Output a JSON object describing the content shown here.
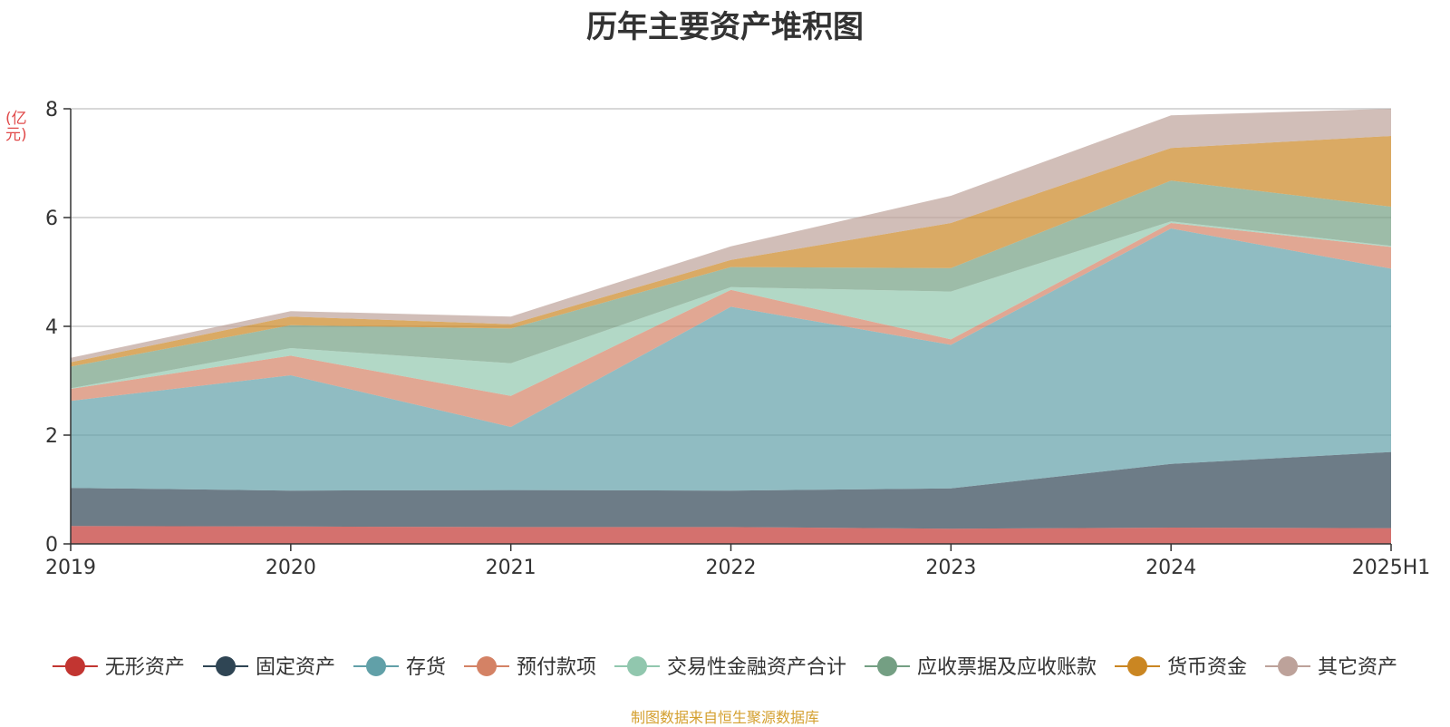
{
  "chart_data": {
    "type": "area",
    "stacked": true,
    "title": "历年主要资产堆积图",
    "ylabel": "(亿元)",
    "xlabel": "",
    "x": [
      "2019",
      "2020",
      "2021",
      "2022",
      "2023",
      "2024",
      "2025H1"
    ],
    "ylim": [
      0,
      8
    ],
    "yticks": [
      0,
      2,
      4,
      6,
      8
    ],
    "grid": true,
    "legend_position": "bottom",
    "series": [
      {
        "name": "无形资产",
        "color": "#c23531",
        "values": [
          0.33,
          0.32,
          0.31,
          0.31,
          0.28,
          0.3,
          0.29
        ]
      },
      {
        "name": "固定资产",
        "color": "#2f4554",
        "values": [
          0.7,
          0.66,
          0.68,
          0.67,
          0.74,
          1.17,
          1.4
        ]
      },
      {
        "name": "存货",
        "color": "#61a0a8",
        "values": [
          1.6,
          2.12,
          1.16,
          3.38,
          2.64,
          4.33,
          3.37
        ]
      },
      {
        "name": "预付款项",
        "color": "#d48265",
        "values": [
          0.22,
          0.36,
          0.57,
          0.31,
          0.1,
          0.1,
          0.4
        ]
      },
      {
        "name": "交易性金融资产合计",
        "color": "#91c7ae",
        "values": [
          0.01,
          0.14,
          0.6,
          0.05,
          0.88,
          0.03,
          0.02
        ]
      },
      {
        "name": "应收票据及应收账款",
        "color": "#749f83",
        "values": [
          0.4,
          0.42,
          0.64,
          0.37,
          0.43,
          0.75,
          0.72
        ]
      },
      {
        "name": "货币资金",
        "color": "#ca8622",
        "values": [
          0.08,
          0.16,
          0.08,
          0.13,
          0.83,
          0.6,
          1.3
        ]
      },
      {
        "name": "其它资产",
        "color": "#bda29a",
        "values": [
          0.08,
          0.1,
          0.14,
          0.25,
          0.5,
          0.6,
          0.5
        ]
      }
    ]
  },
  "source_note": "制图数据来自恒生聚源数据库"
}
